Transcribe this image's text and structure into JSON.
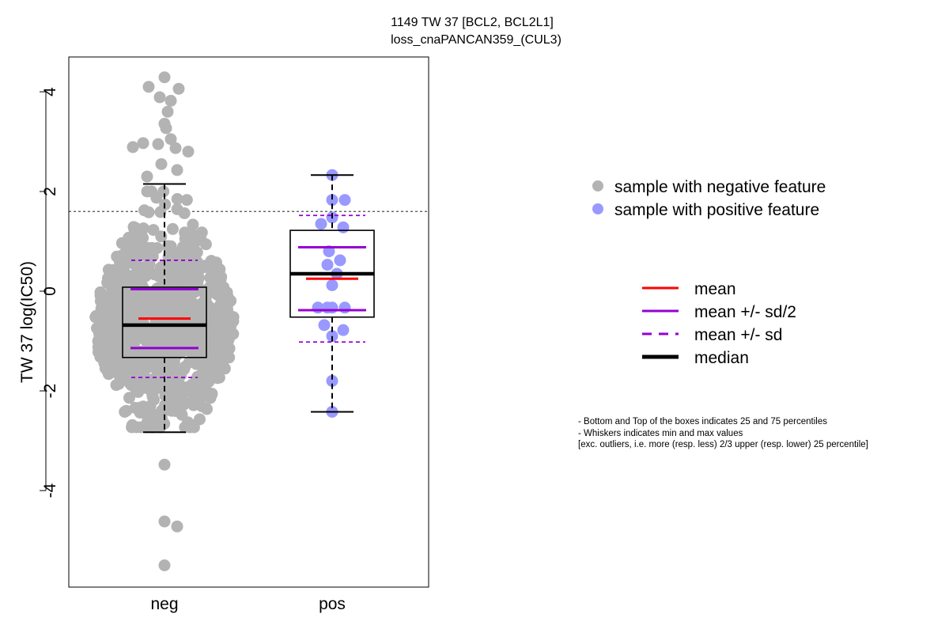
{
  "chart_data": {
    "type": "box-swarm",
    "title": "1149 TW 37 [BCL2, BCL2L1]",
    "subtitle": "loss_cnaPANCAN359_(CUL3)",
    "ylabel": "TW 37 log(IC50)",
    "xlabel": "",
    "ylim": [
      -5.9,
      4.7
    ],
    "yticks": [
      -4,
      -2,
      0,
      2,
      4
    ],
    "threshold": 1.6,
    "categories": [
      "neg",
      "pos"
    ],
    "colors": {
      "neg": "#b3b3b3",
      "pos": "#9999ff",
      "mean": "#ff0000",
      "sd": "#9400d3",
      "median": "#000000"
    },
    "groups": [
      {
        "name": "neg",
        "n": 900,
        "q1": -1.33,
        "median": -0.68,
        "q3": 0.08,
        "whisker_low": -2.83,
        "whisker_high": 2.15,
        "mean": -0.55,
        "sd_half_low": -1.14,
        "sd_half_high": 0.04,
        "sd_low": -1.73,
        "sd_high": 0.62,
        "outliers_high": [
          4.29,
          4.1,
          4.06,
          3.89,
          3.82,
          3.6,
          3.36,
          3.27,
          3.05,
          2.97,
          2.95,
          2.89,
          2.87,
          2.8,
          2.55,
          2.43,
          2.3
        ],
        "outliers_low": [
          -3.48,
          -4.62,
          -4.72,
          -5.5
        ]
      },
      {
        "name": "pos",
        "n": 20,
        "q1": -0.52,
        "median": 0.35,
        "q3": 1.22,
        "whisker_low": -2.42,
        "whisker_high": 2.33,
        "mean": 0.25,
        "sd_half_low": -0.38,
        "sd_half_high": 0.88,
        "sd_low": -1.02,
        "sd_high": 1.52,
        "points": [
          2.33,
          1.83,
          1.83,
          1.48,
          1.35,
          1.28,
          0.8,
          0.62,
          0.53,
          0.35,
          0.12,
          -0.33,
          -0.33,
          -0.33,
          -0.33,
          -0.68,
          -0.78,
          -0.9,
          -1.8,
          -2.42
        ]
      }
    ],
    "legend": {
      "points": [
        "sample with negative feature",
        "sample with positive feature"
      ],
      "lines": [
        "mean",
        "mean +/- sd/2",
        "mean +/- sd",
        "median"
      ],
      "placement": "right"
    },
    "notes": [
      "- Bottom and Top of the boxes indicates 25 and 75 percentiles",
      "- Whiskers indicates min and max values",
      "[exc. outliers, i.e. more (resp. less) 2/3 upper (resp. lower) 25 percentile]"
    ]
  }
}
